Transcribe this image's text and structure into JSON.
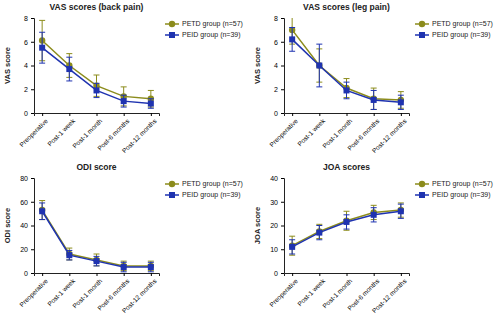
{
  "chart_data": [
    {
      "type": "line",
      "title": "VAS scores (back pain)",
      "y_label": "VAS score",
      "categories": [
        "Preoperative",
        "Post-1 week",
        "Post-1 month",
        "Post-6 months",
        "Post-12 months"
      ],
      "series": [
        {
          "name": "PETD group (n=57)",
          "color": "#8c8c1c",
          "marker": "circle",
          "values": [
            6.1,
            4.0,
            2.3,
            1.4,
            1.2
          ],
          "errors": [
            1.7,
            1.0,
            0.9,
            0.8,
            0.7
          ]
        },
        {
          "name": "PEID group (n=39)",
          "color": "#1f33b0",
          "marker": "square",
          "values": [
            5.5,
            3.7,
            1.9,
            1.0,
            0.8
          ],
          "errors": [
            1.3,
            1.0,
            0.6,
            0.5,
            0.4
          ]
        }
      ],
      "ylim": [
        0,
        8
      ],
      "yticks": [
        0,
        2,
        4,
        6,
        8
      ],
      "legend": "upper right"
    },
    {
      "type": "line",
      "title": "VAS scores (leg pain)",
      "y_label": "VAS score",
      "categories": [
        "Preoperative",
        "Post-1 week",
        "Post-1 month",
        "Post-6 months",
        "Post-12 months"
      ],
      "series": [
        {
          "name": "PETD group (n=57)",
          "color": "#8c8c1c",
          "marker": "circle",
          "values": [
            7.0,
            4.0,
            2.1,
            1.2,
            1.1
          ],
          "errors": [
            1.2,
            1.4,
            0.8,
            0.9,
            0.7
          ]
        },
        {
          "name": "PEID group (n=39)",
          "color": "#1f33b0",
          "marker": "square",
          "values": [
            6.2,
            4.0,
            1.9,
            1.1,
            0.9
          ],
          "errors": [
            1.0,
            1.8,
            0.7,
            0.8,
            0.6
          ]
        }
      ],
      "ylim": [
        0,
        8
      ],
      "yticks": [
        0,
        2,
        4,
        6,
        8
      ],
      "legend": "upper right"
    },
    {
      "type": "line",
      "title": "ODI score",
      "y_label": "ODI score",
      "categories": [
        "Preoperative",
        "Post-1 week",
        "Post-1 month",
        "Post-6 months",
        "Post-12 months"
      ],
      "series": [
        {
          "name": "PETD group (n=57)",
          "color": "#8c8c1c",
          "marker": "circle",
          "values": [
            53,
            16,
            11,
            6,
            6
          ],
          "errors": [
            8,
            5,
            5,
            4,
            4
          ]
        },
        {
          "name": "PEID group (n=39)",
          "color": "#1f33b0",
          "marker": "square",
          "values": [
            52,
            15,
            10,
            5,
            5
          ],
          "errors": [
            7,
            4,
            4,
            4,
            4
          ]
        }
      ],
      "ylim": [
        0,
        80
      ],
      "yticks": [
        0,
        20,
        40,
        60,
        80
      ],
      "legend": "upper right"
    },
    {
      "type": "line",
      "title": "JOA scores",
      "y_label": "JOA score",
      "categories": [
        "Preoperative",
        "Post-1 week",
        "Post-1 month",
        "Post-6 months",
        "Post-12 months"
      ],
      "series": [
        {
          "name": "PETD group (n=57)",
          "color": "#8c8c1c",
          "marker": "circle",
          "values": [
            11.5,
            17.5,
            22,
            25.5,
            26.5
          ],
          "errors": [
            4,
            3,
            4,
            3,
            3
          ]
        },
        {
          "name": "PEID group (n=39)",
          "color": "#1f33b0",
          "marker": "square",
          "values": [
            11,
            17,
            21.5,
            24.5,
            26
          ],
          "errors": [
            3,
            3,
            3,
            3,
            3
          ]
        }
      ],
      "ylim": [
        0,
        40
      ],
      "yticks": [
        0,
        10,
        20,
        30,
        40
      ],
      "legend": "upper right"
    }
  ]
}
